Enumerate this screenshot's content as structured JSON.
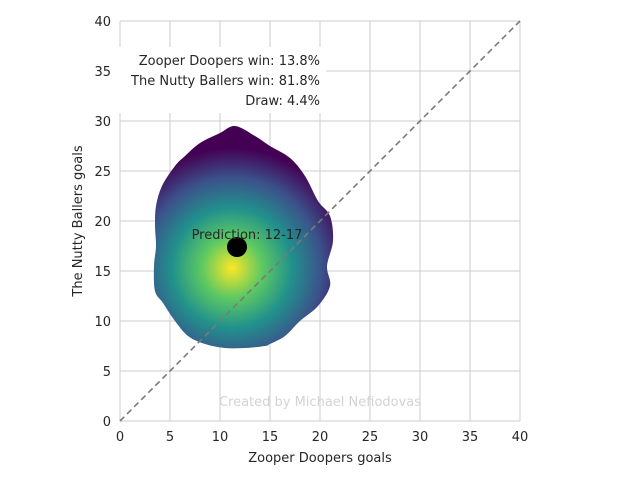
{
  "chart_data": {
    "type": "scatter",
    "xlabel": "Zooper Doopers goals",
    "ylabel": "The Nutty Ballers goals",
    "xlim": [
      0,
      40
    ],
    "ylim": [
      0,
      40
    ],
    "x_ticks": [
      "0",
      "5",
      "10",
      "15",
      "20",
      "25",
      "30",
      "35",
      "40"
    ],
    "y_ticks": [
      "0",
      "5",
      "10",
      "15",
      "20",
      "25",
      "30",
      "35",
      "40"
    ],
    "grid": true,
    "diagonal_reference_line": true,
    "annotations": [
      "Zooper Doopers win: 13.8%",
      "The Nutty Ballers win: 81.8%",
      "Draw: 4.4%"
    ],
    "prediction_label": "Prediction: 12-17",
    "prediction_point": {
      "x": 11.7,
      "y": 17.4
    },
    "density_peak": {
      "x": 11.2,
      "y": 15.3
    },
    "density_outline": [
      [
        11.5,
        29.5
      ],
      [
        13.5,
        28.5
      ],
      [
        15,
        27.5
      ],
      [
        17,
        26.3
      ],
      [
        18.5,
        24.5
      ],
      [
        19.8,
        22
      ],
      [
        21,
        20.5
      ],
      [
        21.3,
        18
      ],
      [
        20.7,
        15.5
      ],
      [
        21,
        13.5
      ],
      [
        19.8,
        11.5
      ],
      [
        18,
        10
      ],
      [
        16.5,
        8.5
      ],
      [
        15,
        7.7
      ],
      [
        14.5,
        7.5
      ],
      [
        12.5,
        7.3
      ],
      [
        10.5,
        7.3
      ],
      [
        8.5,
        7.7
      ],
      [
        6.8,
        8.5
      ],
      [
        5.5,
        10
      ],
      [
        4.3,
        11.8
      ],
      [
        3.5,
        13
      ],
      [
        3.4,
        15.5
      ],
      [
        3.6,
        17.5
      ],
      [
        3.5,
        19.5
      ],
      [
        3.6,
        21.5
      ],
      [
        4.2,
        23.5
      ],
      [
        5.5,
        25.5
      ],
      [
        6.5,
        26.5
      ],
      [
        8,
        27.8
      ],
      [
        10,
        28.8
      ]
    ],
    "colormap": [
      "#fde725",
      "#5ec962",
      "#21918c",
      "#3b528b",
      "#440154"
    ],
    "watermark": "Created by Michael Nefiodovas"
  }
}
